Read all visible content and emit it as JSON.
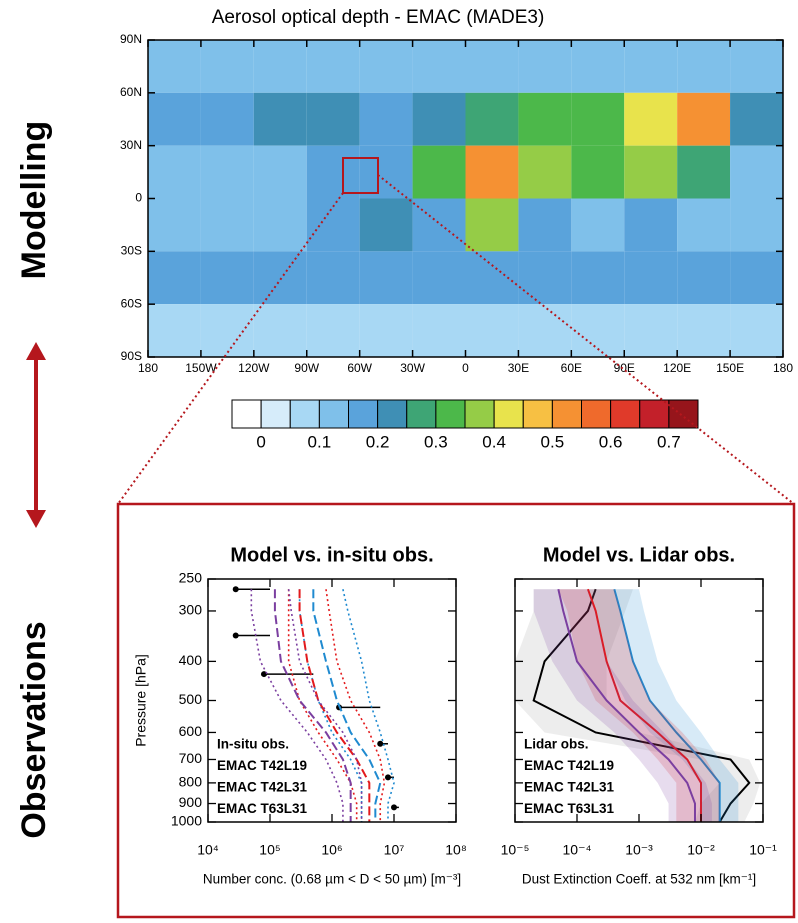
{
  "labels": {
    "top": "Modelling",
    "bottom": "Observations"
  },
  "chart_data": [
    {
      "type": "map",
      "title": "Aerosol optical depth - EMAC (MADE3)",
      "xlim": [
        -180,
        180
      ],
      "ylim": [
        -90,
        90
      ],
      "xticks": [
        {
          "value": -180,
          "label": "180"
        },
        {
          "value": -150,
          "label": "150W"
        },
        {
          "value": -120,
          "label": "120W"
        },
        {
          "value": -90,
          "label": "90W"
        },
        {
          "value": -60,
          "label": "60W"
        },
        {
          "value": -30,
          "label": "30W"
        },
        0,
        {
          "value": 30,
          "label": "30E"
        },
        {
          "value": 60,
          "label": "60E"
        },
        {
          "value": 90,
          "label": "90E"
        },
        {
          "value": 120,
          "label": "120E"
        },
        {
          "value": 150,
          "label": "150E"
        },
        180
      ],
      "yticks": [
        {
          "value": 90,
          "label": "90N"
        },
        {
          "value": 60,
          "label": "60N"
        },
        {
          "value": 30,
          "label": "30N"
        },
        0,
        {
          "value": -30,
          "label": "30S"
        },
        {
          "value": -60,
          "label": "60S"
        },
        {
          "value": -90,
          "label": "90S"
        }
      ],
      "aod": [
        [
          0.1,
          0.1,
          0.1,
          0.1,
          0.1,
          0.1,
          0.1,
          0.1,
          0.1,
          0.1,
          0.1,
          0.1
        ],
        [
          0.15,
          0.15,
          0.2,
          0.2,
          0.15,
          0.2,
          0.25,
          0.3,
          0.3,
          0.4,
          0.5,
          0.2
        ],
        [
          0.1,
          0.1,
          0.1,
          0.15,
          0.15,
          0.3,
          0.5,
          0.35,
          0.3,
          0.35,
          0.25,
          0.1
        ],
        [
          0.1,
          0.1,
          0.1,
          0.15,
          0.2,
          0.15,
          0.35,
          0.15,
          0.1,
          0.15,
          0.1,
          0.1
        ],
        [
          0.15,
          0.15,
          0.15,
          0.15,
          0.15,
          0.15,
          0.15,
          0.15,
          0.15,
          0.15,
          0.15,
          0.15
        ],
        [
          0.05,
          0.05,
          0.05,
          0.05,
          0.05,
          0.05,
          0.05,
          0.05,
          0.05,
          0.05,
          0.05,
          0.05
        ]
      ],
      "colorbar_levels": [
        0,
        0.05,
        0.1,
        0.15,
        0.2,
        0.25,
        0.3,
        0.35,
        0.4,
        0.45,
        0.5,
        0.55,
        0.6,
        0.65,
        0.7
      ],
      "colorbar_colors": [
        "#ffffff",
        "#d6ecfa",
        "#a8d8f4",
        "#7fc0ea",
        "#5aa3db",
        "#3f8fb5",
        "#3ea575",
        "#4cb84a",
        "#95cc47",
        "#e8e34c",
        "#f7c043",
        "#f59133",
        "#ef6a2c",
        "#e03a2a",
        "#c3202a",
        "#96151b"
      ],
      "colorbar_ticks": [
        0,
        0.1,
        0.2,
        0.3,
        0.4,
        0.5,
        0.6,
        0.7
      ]
    },
    {
      "type": "profile",
      "title": "Model vs. in-situ obs.",
      "xlabel": "Number conc. (0.68 µm < D < 50 µm) [m⁻³]",
      "ylabel": "Pressure [hPa]",
      "xlog": true,
      "ylog": true,
      "xlim": [
        10000,
        100000000
      ],
      "xticks": [
        {
          "value": 10000,
          "label": "10⁴"
        },
        {
          "value": 100000,
          "label": "10⁵"
        },
        {
          "value": 1000000,
          "label": "10⁶"
        },
        {
          "value": 10000000,
          "label": "10⁷"
        },
        {
          "value": 100000000,
          "label": "10⁸"
        }
      ],
      "ylim": [
        1000,
        250
      ],
      "yticks": [
        250,
        300,
        400,
        500,
        600,
        700,
        800,
        900,
        1000
      ],
      "ytick_labels": true,
      "pressure": [
        265,
        300,
        400,
        500,
        600,
        700,
        800,
        900,
        1000
      ],
      "series": [
        {
          "name": "In-situ obs.",
          "color": "#000000",
          "style": "points",
          "pressure": [
            265,
            345,
            430,
            520,
            640,
            775,
            920
          ],
          "values": [
            28000,
            28000,
            80000,
            1300000,
            6000000,
            8000000,
            10000000
          ],
          "upper": [
            100000,
            100000,
            500000,
            6000000,
            8000000,
            10000000,
            12000000
          ]
        },
        {
          "name": "EMAC T42L19",
          "color": "#1f8ad0",
          "style": "dashed",
          "values": [
            500000,
            500000,
            800000,
            1200000,
            2000000,
            4000000,
            6000000,
            5000000,
            5000000
          ],
          "lower": [
            300000,
            300000,
            400000,
            600000,
            1000000,
            2000000,
            3000000,
            3000000,
            3000000
          ],
          "upper": [
            1500000,
            1800000,
            3000000,
            4000000,
            6000000,
            8000000,
            10000000,
            8000000,
            8000000
          ]
        },
        {
          "name": "EMAC T42L31",
          "color": "#e31a1c",
          "style": "dashed",
          "values": [
            300000,
            300000,
            400000,
            600000,
            1200000,
            2500000,
            4000000,
            4000000,
            4000000
          ],
          "lower": [
            200000,
            200000,
            200000,
            300000,
            600000,
            1200000,
            2000000,
            2500000,
            2500000
          ],
          "upper": [
            800000,
            900000,
            1200000,
            2000000,
            4000000,
            6000000,
            7000000,
            6000000,
            6000000
          ]
        },
        {
          "name": "EMAC T63L31",
          "color": "#7b3fa0",
          "style": "dashed",
          "values": [
            120000,
            120000,
            150000,
            300000,
            800000,
            1500000,
            2000000,
            2000000,
            2000000
          ],
          "lower": [
            50000,
            50000,
            70000,
            150000,
            400000,
            800000,
            1200000,
            1500000,
            1500000
          ],
          "upper": [
            200000,
            220000,
            300000,
            600000,
            1500000,
            2500000,
            3000000,
            3000000,
            3000000
          ]
        }
      ]
    },
    {
      "type": "profile",
      "title": "Model vs. Lidar obs.",
      "xlabel": "Dust Extinction Coeff. at 532 nm [km⁻¹]",
      "xlog": true,
      "ylog": true,
      "xlim": [
        1e-05,
        0.1
      ],
      "xticks": [
        {
          "value": 1e-05,
          "label": "10⁻⁵"
        },
        {
          "value": 0.0001,
          "label": "10⁻⁴"
        },
        {
          "value": 0.001,
          "label": "10⁻³"
        },
        {
          "value": 0.01,
          "label": "10⁻²"
        },
        {
          "value": 0.1,
          "label": "10⁻¹"
        }
      ],
      "ylim": [
        1000,
        250
      ],
      "yticks": [
        250,
        300,
        400,
        500,
        600,
        700,
        800,
        900,
        1000
      ],
      "ytick_labels": false,
      "pressure": [
        265,
        300,
        400,
        500,
        600,
        700,
        800,
        900,
        1000
      ],
      "series": [
        {
          "name": "Lidar obs.",
          "color": "#000000",
          "band_color": "#999999",
          "style": "band",
          "values": [
            0.0002,
            0.00015,
            3e-05,
            2e-05,
            0.0002,
            0.03,
            0.06,
            0.03,
            0.02
          ],
          "lower": [
            2e-05,
            2e-05,
            1e-05,
            1e-05,
            3e-05,
            0.01,
            0.02,
            0.01,
            0.008
          ],
          "upper": [
            0.0008,
            0.0006,
            0.0003,
            0.0003,
            0.001,
            0.06,
            0.09,
            0.07,
            0.05
          ]
        },
        {
          "name": "EMAC T42L19",
          "color": "#1f8ad0",
          "band_color": "#1f8ad0",
          "style": "band",
          "values": [
            0.0004,
            0.0005,
            0.0008,
            0.0015,
            0.004,
            0.01,
            0.02,
            0.02,
            0.02
          ],
          "lower": [
            0.00015,
            0.0002,
            0.0003,
            0.0006,
            0.0015,
            0.005,
            0.01,
            0.01,
            0.01
          ],
          "upper": [
            0.001,
            0.0012,
            0.002,
            0.004,
            0.01,
            0.02,
            0.04,
            0.04,
            0.04
          ]
        },
        {
          "name": "EMAC T42L31",
          "color": "#e31a1c",
          "band_color": "#e31a1c",
          "style": "band",
          "values": [
            0.00015,
            0.0002,
            0.0003,
            0.0005,
            0.002,
            0.006,
            0.01,
            0.01,
            0.01
          ],
          "lower": [
            5e-05,
            7e-05,
            0.0001,
            0.0002,
            0.0008,
            0.002,
            0.004,
            0.004,
            0.004
          ],
          "upper": [
            0.0004,
            0.0005,
            0.0008,
            0.0015,
            0.005,
            0.012,
            0.02,
            0.02,
            0.02
          ]
        },
        {
          "name": "EMAC T63L31",
          "color": "#7b3fa0",
          "band_color": "#7b3fa0",
          "style": "band",
          "values": [
            5e-05,
            6e-05,
            0.0001,
            0.0003,
            0.001,
            0.003,
            0.006,
            0.008,
            0.008
          ],
          "lower": [
            2e-05,
            2e-05,
            4e-05,
            0.0001,
            0.0004,
            0.001,
            0.002,
            0.003,
            0.003
          ],
          "upper": [
            0.00015,
            0.0002,
            0.0003,
            0.0008,
            0.0025,
            0.006,
            0.012,
            0.015,
            0.015
          ]
        }
      ]
    }
  ]
}
